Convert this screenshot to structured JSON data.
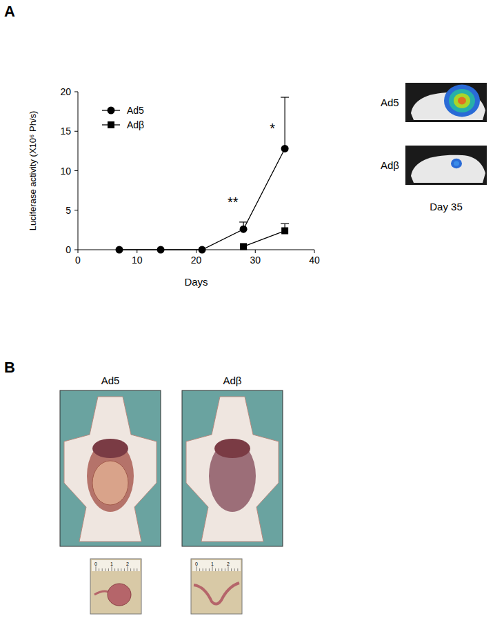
{
  "chart_data": {
    "type": "line",
    "xlabel": "Days",
    "ylabel": "Luciferase activity (X10⁶ Ph/s)",
    "xlim": [
      0,
      40
    ],
    "xticks": [
      0,
      10,
      20,
      30,
      40
    ],
    "ylim": [
      0,
      20
    ],
    "yticks": [
      0,
      5,
      10,
      15,
      20
    ],
    "grid": false,
    "legend": "upper left",
    "series": [
      {
        "name": "Ad5",
        "color": "#000000",
        "marker": "circle",
        "line_style": "solid",
        "x": [
          7,
          14,
          21,
          28,
          35
        ],
        "values": [
          0,
          0,
          0,
          2.6,
          12.8
        ],
        "errors": [
          0,
          0,
          0,
          0.9,
          6.5
        ]
      },
      {
        "name": "Adβ",
        "color": "#000000",
        "marker": "square",
        "line_style": "solid",
        "x": [
          28,
          35
        ],
        "values": [
          0.4,
          2.4
        ],
        "errors": [
          0,
          0.9
        ]
      }
    ],
    "annotations": [
      {
        "text": "**",
        "x": 26.2,
        "y": 5.4
      },
      {
        "text": "*",
        "x": 32.9,
        "y": 14.8
      }
    ]
  },
  "figure": {
    "panel_labels": [
      "A",
      "B"
    ],
    "imaging": {
      "labels": [
        "Ad5",
        "Adβ"
      ],
      "caption": "Day 35"
    },
    "photos": {
      "labels": [
        "Ad5",
        "Adβ"
      ],
      "ruler_labels": [
        "0",
        "1",
        "2"
      ]
    }
  }
}
